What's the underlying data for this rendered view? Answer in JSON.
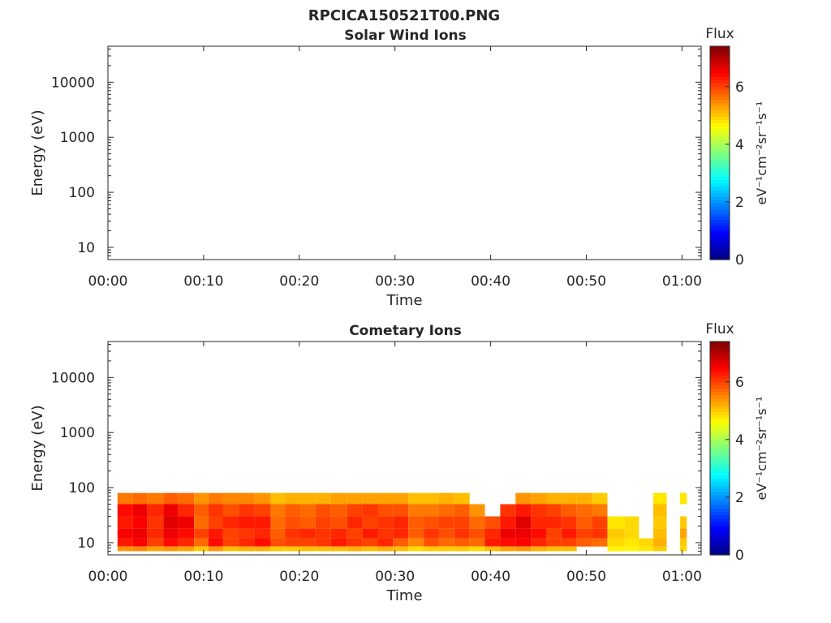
{
  "figure": {
    "title": "RPCICA150521T00.PNG"
  },
  "colors": {
    "axis": "#262626",
    "background": "#ffffff",
    "colormap": [
      "#00007f",
      "#0000ff",
      "#007fff",
      "#00ffff",
      "#7fff7f",
      "#ffff00",
      "#ff7f00",
      "#ff0000",
      "#7f0000"
    ]
  },
  "chart_data": [
    {
      "type": "heatmap",
      "title": "Solar Wind Ions",
      "xlabel": "Time",
      "ylabel": "Energy (eV)",
      "x_ticks": [
        "00:00",
        "00:10",
        "00:20",
        "00:30",
        "00:40",
        "00:50",
        "01:00"
      ],
      "y_ticks": [
        "10",
        "100",
        "1000",
        "10000"
      ],
      "y_scale": "log",
      "ylim": [
        6,
        45000
      ],
      "xlim_minutes": [
        0,
        62
      ],
      "colorbar": {
        "label": "Flux",
        "units": "eV⁻¹cm⁻²sr⁻¹s⁻¹",
        "ticks": [
          "0",
          "2",
          "4",
          "6"
        ],
        "range": [
          0,
          7.4
        ]
      },
      "blocks": []
    },
    {
      "type": "heatmap",
      "title": "Cometary Ions",
      "xlabel": "Time",
      "ylabel": "Energy (eV)",
      "x_ticks": [
        "00:00",
        "00:10",
        "00:20",
        "00:30",
        "00:40",
        "00:50",
        "01:00"
      ],
      "y_ticks": [
        "10",
        "100",
        "1000",
        "10000"
      ],
      "y_scale": "log",
      "ylim": [
        6,
        45000
      ],
      "xlim_minutes": [
        0,
        62
      ],
      "colorbar": {
        "label": "Flux",
        "units": "eV⁻¹cm⁻²sr⁻¹s⁻¹",
        "ticks": [
          "0",
          "2",
          "4",
          "6"
        ],
        "range": [
          0,
          7.4
        ]
      },
      "blocks": [
        {
          "t0": 1.0,
          "t1": 2.6,
          "flux_by_band": [
            5.6,
            6.4,
            6.3,
            6.5,
            6.3,
            5.4
          ]
        },
        {
          "t0": 2.6,
          "t1": 4.1,
          "flux_by_band": [
            5.7,
            6.6,
            6.5,
            6.6,
            6.5,
            5.5
          ]
        },
        {
          "t0": 4.1,
          "t1": 5.8,
          "flux_by_band": [
            5.6,
            6.2,
            6.1,
            6.2,
            6.0,
            5.3
          ]
        },
        {
          "t0": 5.8,
          "t1": 7.3,
          "flux_by_band": [
            5.8,
            6.6,
            6.7,
            6.6,
            6.4,
            5.4
          ]
        },
        {
          "t0": 7.3,
          "t1": 9.0,
          "flux_by_band": [
            5.7,
            6.2,
            6.6,
            6.4,
            6.2,
            5.3
          ]
        },
        {
          "t0": 9.0,
          "t1": 10.5,
          "flux_by_band": [
            5.4,
            5.8,
            5.7,
            6.0,
            5.7,
            5.0
          ]
        },
        {
          "t0": 10.5,
          "t1": 12.0,
          "flux_by_band": [
            5.6,
            6.1,
            6.0,
            6.3,
            6.4,
            5.4
          ]
        },
        {
          "t0": 12.0,
          "t1": 13.7,
          "flux_by_band": [
            5.5,
            5.9,
            6.2,
            6.0,
            6.0,
            5.1
          ]
        },
        {
          "t0": 13.7,
          "t1": 15.3,
          "flux_by_band": [
            5.5,
            6.1,
            6.3,
            6.1,
            6.2,
            5.2
          ]
        },
        {
          "t0": 15.3,
          "t1": 17.0,
          "flux_by_band": [
            5.4,
            6.0,
            6.3,
            6.2,
            6.4,
            5.2
          ]
        },
        {
          "t0": 17.0,
          "t1": 18.5,
          "flux_by_band": [
            5.1,
            5.6,
            5.7,
            5.8,
            5.9,
            5.0
          ]
        },
        {
          "t0": 18.5,
          "t1": 20.1,
          "flux_by_band": [
            5.2,
            5.8,
            5.9,
            6.1,
            6.0,
            5.0
          ]
        },
        {
          "t0": 20.1,
          "t1": 21.7,
          "flux_by_band": [
            5.2,
            5.7,
            5.8,
            6.2,
            6.0,
            5.1
          ]
        },
        {
          "t0": 21.7,
          "t1": 23.3,
          "flux_by_band": [
            5.2,
            5.9,
            6.0,
            6.1,
            6.1,
            5.1
          ]
        },
        {
          "t0": 23.3,
          "t1": 25.0,
          "flux_by_band": [
            5.3,
            5.8,
            5.9,
            6.2,
            6.3,
            5.1
          ]
        },
        {
          "t0": 25.0,
          "t1": 26.6,
          "flux_by_band": [
            5.3,
            6.0,
            6.2,
            6.0,
            6.1,
            5.2
          ]
        },
        {
          "t0": 26.6,
          "t1": 28.2,
          "flux_by_band": [
            5.3,
            6.1,
            6.0,
            6.3,
            6.0,
            5.1
          ]
        },
        {
          "t0": 28.2,
          "t1": 29.8,
          "flux_by_band": [
            5.3,
            5.9,
            6.1,
            6.1,
            6.2,
            5.2
          ]
        },
        {
          "t0": 29.8,
          "t1": 31.4,
          "flux_by_band": [
            5.3,
            5.9,
            6.2,
            6.2,
            5.8,
            5.1
          ]
        },
        {
          "t0": 31.4,
          "t1": 33.0,
          "flux_by_band": [
            5.1,
            5.6,
            5.8,
            5.8,
            5.5,
            4.9
          ]
        },
        {
          "t0": 33.0,
          "t1": 34.6,
          "flux_by_band": [
            5.1,
            5.6,
            5.9,
            6.1,
            5.9,
            5.0
          ]
        },
        {
          "t0": 34.6,
          "t1": 36.2,
          "flux_by_band": [
            5.2,
            5.7,
            6.0,
            5.9,
            5.7,
            5.0
          ]
        },
        {
          "t0": 36.2,
          "t1": 37.8,
          "flux_by_band": [
            5.1,
            5.8,
            6.0,
            6.1,
            5.8,
            5.0
          ]
        },
        {
          "t0": 37.8,
          "t1": 39.4,
          "flux_by_band": [
            null,
            5.4,
            5.7,
            5.9,
            5.7,
            4.9
          ]
        },
        {
          "t0": 39.4,
          "t1": 41.0,
          "flux_by_band": [
            null,
            null,
            5.9,
            6.2,
            6.3,
            5.1
          ]
        },
        {
          "t0": 41.0,
          "t1": 42.6,
          "flux_by_band": [
            null,
            6.1,
            6.3,
            6.6,
            6.4,
            5.3
          ]
        },
        {
          "t0": 42.6,
          "t1": 44.2,
          "flux_by_band": [
            5.4,
            6.3,
            6.7,
            6.6,
            6.5,
            5.4
          ]
        },
        {
          "t0": 44.2,
          "t1": 45.8,
          "flux_by_band": [
            5.3,
            6.1,
            6.2,
            6.4,
            6.2,
            5.2
          ]
        },
        {
          "t0": 45.8,
          "t1": 47.4,
          "flux_by_band": [
            5.2,
            6.0,
            6.2,
            6.0,
            6.0,
            5.1
          ]
        },
        {
          "t0": 47.4,
          "t1": 49.0,
          "flux_by_band": [
            5.2,
            5.8,
            6.1,
            6.3,
            6.0,
            5.1
          ]
        },
        {
          "t0": 49.0,
          "t1": 50.6,
          "flux_by_band": [
            5.2,
            5.7,
            5.8,
            6.0,
            5.8,
            null
          ]
        },
        {
          "t0": 50.6,
          "t1": 52.2,
          "flux_by_band": [
            5.0,
            5.6,
            6.0,
            6.1,
            5.7,
            null
          ]
        },
        {
          "t0": 52.2,
          "t1": 54.0,
          "flux_by_band": [
            null,
            null,
            4.8,
            5.0,
            4.9,
            4.7
          ]
        },
        {
          "t0": 54.0,
          "t1": 55.5,
          "flux_by_band": [
            null,
            null,
            4.9,
            4.9,
            4.8,
            4.7
          ]
        },
        {
          "t0": 55.5,
          "t1": 57.0,
          "flux_by_band": [
            null,
            null,
            null,
            null,
            4.9,
            4.8
          ]
        },
        {
          "t0": 57.0,
          "t1": 58.4,
          "flux_by_band": [
            4.8,
            5.1,
            5.0,
            5.1,
            5.2,
            5.0
          ]
        },
        {
          "t0": 59.8,
          "t1": 60.5,
          "flux_by_band": [
            4.8,
            null,
            5.0,
            5.3,
            5.0,
            4.9
          ]
        }
      ],
      "bands_eV": [
        [
          50,
          80
        ],
        [
          30,
          50
        ],
        [
          18,
          30
        ],
        [
          12,
          18
        ],
        [
          8.5,
          12
        ],
        [
          7,
          8.5
        ]
      ]
    }
  ]
}
